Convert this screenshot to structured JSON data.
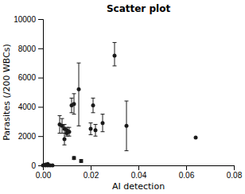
{
  "chart_data": {
    "type": "scatter",
    "title": "Scatter plot",
    "x_label": "AI detection",
    "y_label": "Parasites (/200 WBCs)",
    "color": "#1a1a1a",
    "xlim": [
      0,
      0.08
    ],
    "ylim": [
      0,
      10000
    ],
    "xticks": [
      {
        "value": 0,
        "label": "0.00"
      },
      0.02,
      0.04,
      0.06,
      0.08
    ],
    "yticks": [
      0,
      2000,
      4000,
      6000,
      8000,
      10000
    ],
    "x": [
      0.0,
      0.001,
      0.001,
      0.002,
      0.002,
      0.003,
      0.004,
      0.007,
      0.008,
      0.009,
      0.009,
      0.01,
      0.01,
      0.011,
      0.012,
      0.013,
      0.013,
      0.015,
      0.016,
      0.02,
      0.021,
      0.022,
      0.025,
      0.03,
      0.035,
      0.064
    ],
    "values": [
      0,
      0,
      50,
      100,
      0,
      0,
      0,
      2800,
      2700,
      1800,
      2500,
      2200,
      2400,
      2300,
      4100,
      4200,
      500,
      5200,
      300,
      2500,
      4100,
      2400,
      2900,
      7500,
      2700,
      1900
    ],
    "error_low": [
      0,
      0,
      0,
      0,
      0,
      0,
      0,
      600,
      500,
      400,
      300,
      200,
      200,
      300,
      500,
      700,
      100,
      2500,
      100,
      400,
      500,
      400,
      600,
      700,
      1700,
      0
    ],
    "error_high": [
      0,
      0,
      0,
      0,
      0,
      0,
      0,
      600,
      500,
      400,
      300,
      200,
      200,
      300,
      500,
      700,
      100,
      1800,
      100,
      400,
      500,
      400,
      600,
      900,
      1700,
      0
    ]
  }
}
